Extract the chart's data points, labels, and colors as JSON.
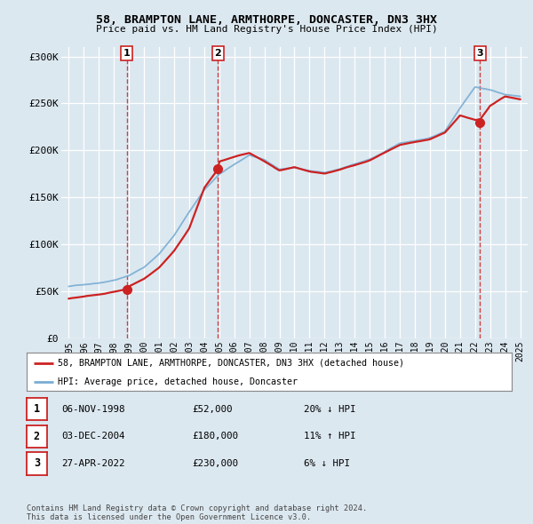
{
  "title": "58, BRAMPTON LANE, ARMTHORPE, DONCASTER, DN3 3HX",
  "subtitle": "Price paid vs. HM Land Registry's House Price Index (HPI)",
  "hpi_color": "#7aadd4",
  "sale_color": "#cc2222",
  "vline_color": "#cc2222",
  "background_color": "#dce8f0",
  "plot_bg": "#dce8f0",
  "sales": [
    {
      "year": 1998.85,
      "price": 52000,
      "label": "1"
    },
    {
      "year": 2004.92,
      "price": 180000,
      "label": "2"
    },
    {
      "year": 2022.32,
      "price": 230000,
      "label": "3"
    }
  ],
  "legend_entries": [
    "58, BRAMPTON LANE, ARMTHORPE, DONCASTER, DN3 3HX (detached house)",
    "HPI: Average price, detached house, Doncaster"
  ],
  "table_rows": [
    [
      "1",
      "06-NOV-1998",
      "£52,000",
      "20% ↓ HPI"
    ],
    [
      "2",
      "03-DEC-2004",
      "£180,000",
      "11% ↑ HPI"
    ],
    [
      "3",
      "27-APR-2022",
      "£230,000",
      "6% ↓ HPI"
    ]
  ],
  "footer": "Contains HM Land Registry data © Crown copyright and database right 2024.\nThis data is licensed under the Open Government Licence v3.0.",
  "ylim": [
    0,
    310000
  ],
  "yticks": [
    0,
    50000,
    100000,
    150000,
    200000,
    250000,
    300000
  ],
  "ytick_labels": [
    "£0",
    "£50K",
    "£100K",
    "£150K",
    "£200K",
    "£250K",
    "£300K"
  ],
  "xmin": 1994.5,
  "xmax": 2025.5,
  "hpi_data": {
    "years": [
      1995,
      1996,
      1997,
      1998,
      1999,
      2000,
      2001,
      2002,
      2003,
      2004,
      2005,
      2006,
      2007,
      2008,
      2009,
      2010,
      2011,
      2012,
      2013,
      2014,
      2015,
      2016,
      2017,
      2018,
      2019,
      2020,
      2021,
      2022,
      2023,
      2024,
      2025
    ],
    "values": [
      55000,
      57000,
      59000,
      62000,
      67000,
      76000,
      90000,
      110000,
      135000,
      158000,
      175000,
      185000,
      195000,
      190000,
      180000,
      182000,
      178000,
      176000,
      180000,
      185000,
      190000,
      198000,
      207000,
      210000,
      213000,
      220000,
      245000,
      268000,
      265000,
      260000,
      258000
    ]
  },
  "sale_data": {
    "years": [
      1995,
      1996,
      1997,
      1998.0,
      1998.85,
      1999,
      2000,
      2001,
      2002,
      2003,
      2004.0,
      2004.92,
      2005,
      2006,
      2007,
      2008,
      2009,
      2010,
      2011,
      2012,
      2013,
      2014,
      2015,
      2016,
      2017,
      2018,
      2019,
      2020,
      2021,
      2022.0,
      2022.32,
      2023,
      2024,
      2025
    ],
    "values": [
      42000,
      44000,
      46000,
      49000,
      52000,
      55000,
      63000,
      75000,
      93000,
      117000,
      160000,
      180000,
      188000,
      193000,
      197000,
      188000,
      178000,
      181000,
      176000,
      174000,
      178000,
      183000,
      188000,
      196000,
      204000,
      207000,
      210000,
      217000,
      235000,
      230000,
      230000,
      245000,
      255000,
      252000
    ]
  }
}
